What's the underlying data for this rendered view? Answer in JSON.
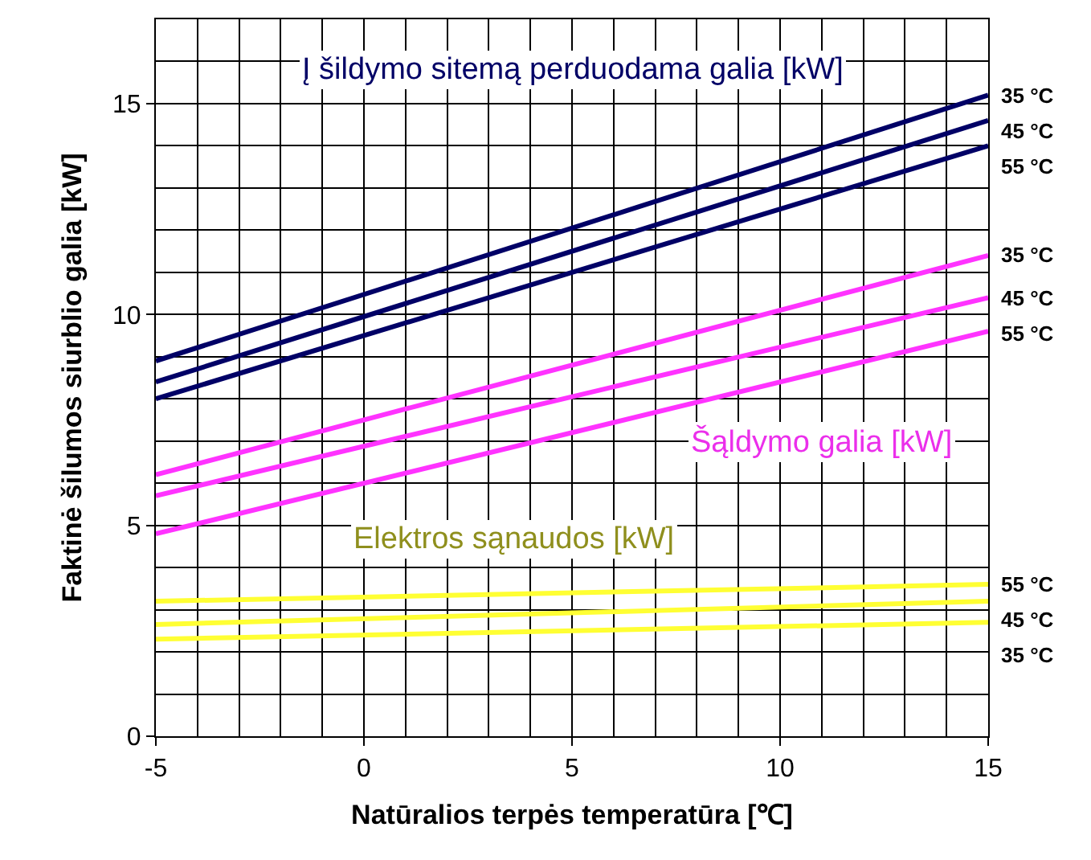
{
  "chart_data": {
    "type": "line",
    "xlabel": "Natūralios terpės temperatūra [℃]",
    "ylabel": "Faktinė šilumos siurblio galia [kW]",
    "xlim": [
      -5,
      15
    ],
    "xticks": [
      -5,
      0,
      5,
      10,
      15
    ],
    "ylim": [
      0,
      17
    ],
    "yticks": [
      0,
      5,
      10,
      15
    ],
    "grid": true,
    "legend": false,
    "marker": "none",
    "line_style": "solid",
    "x": [
      -5,
      15
    ],
    "series": [
      {
        "name": "35 °C",
        "color": "#000066",
        "values": [
          8.9,
          15.2
        ]
      },
      {
        "name": "45 °C",
        "color": "#000066",
        "values": [
          8.4,
          14.6
        ]
      },
      {
        "name": "55 °C",
        "color": "#000066",
        "values": [
          8.0,
          14.0
        ]
      },
      {
        "name": "35 °C",
        "color": "#ff33ff",
        "values": [
          6.2,
          11.4
        ]
      },
      {
        "name": "45 °C",
        "color": "#ff33ff",
        "values": [
          5.7,
          10.4
        ]
      },
      {
        "name": "55 °C",
        "color": "#ff33ff",
        "values": [
          4.8,
          9.6
        ]
      },
      {
        "name": "55 °C",
        "color": "#ffff33",
        "values": [
          3.2,
          3.6
        ]
      },
      {
        "name": "45 °C",
        "color": "#ffff33",
        "values": [
          2.65,
          3.2
        ]
      },
      {
        "name": "35 °C",
        "color": "#ffff33",
        "values": [
          2.3,
          2.7
        ]
      }
    ],
    "annotations": [
      "Į šildymo sitemą perduodama galia [kW]",
      "Šąldymo galia [kW]",
      "Elektros sąnaudos [kW]"
    ]
  }
}
